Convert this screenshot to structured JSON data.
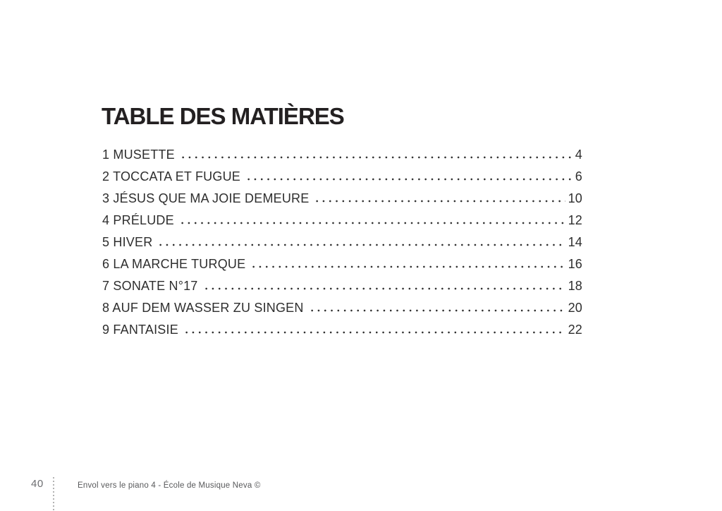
{
  "page": {
    "title": "TABLE DES MATIÈRES"
  },
  "toc": {
    "items": [
      {
        "label": "1 MUSETTE",
        "page": "4"
      },
      {
        "label": "2 TOCCATA ET FUGUE",
        "page": "6"
      },
      {
        "label": "3 JÉSUS QUE MA JOIE DEMEURE",
        "page": "10"
      },
      {
        "label": "4 PRÉLUDE",
        "page": "12"
      },
      {
        "label": "5 HIVER",
        "page": "14"
      },
      {
        "label": "6 LA MARCHE TURQUE",
        "page": "16"
      },
      {
        "label": "7 SONATE N°17",
        "page": "18"
      },
      {
        "label": "8 AUF DEM WASSER ZU SINGEN",
        "page": "20"
      },
      {
        "label": "9 FANTAISIE",
        "page": "22"
      }
    ]
  },
  "footer": {
    "page_number": "40",
    "credit": "Envol vers le piano 4 - École de Musique Neva ©"
  },
  "colors": {
    "background": "#ffffff",
    "title_text": "#232021",
    "body_text": "#2e2e2e",
    "footer_text": "#58595b",
    "page_number_text": "#6d6e71",
    "divider": "#b3b3b3"
  }
}
